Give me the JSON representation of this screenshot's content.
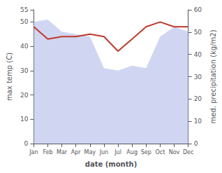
{
  "chart_data": {
    "type": "line",
    "xlabel": "date (month)",
    "ylabel": "max temp (C)",
    "y2label": "med. precipitation (kg/m2)",
    "categories": [
      "Jan",
      "Feb",
      "Mar",
      "Apr",
      "May",
      "Jun",
      "Jul",
      "Aug",
      "Sep",
      "Oct",
      "Nov",
      "Dec"
    ],
    "series": [
      {
        "type": "area",
        "color": "#aab4e8",
        "values": [
          50,
          51,
          46,
          45,
          44,
          31,
          30,
          32,
          31,
          44,
          48,
          46
        ]
      },
      {
        "type": "line",
        "color": "#c0392b",
        "values": [
          48,
          43,
          44,
          44,
          45,
          44,
          38,
          43,
          48,
          50,
          48,
          48
        ]
      }
    ],
    "ylim": [
      0,
      55
    ],
    "yticks": [
      0,
      10,
      20,
      30,
      40,
      50
    ],
    "y2lim": [
      0,
      60
    ],
    "y2ticks": [
      0,
      10,
      20,
      30,
      40,
      50,
      60
    ],
    "grid": false
  }
}
